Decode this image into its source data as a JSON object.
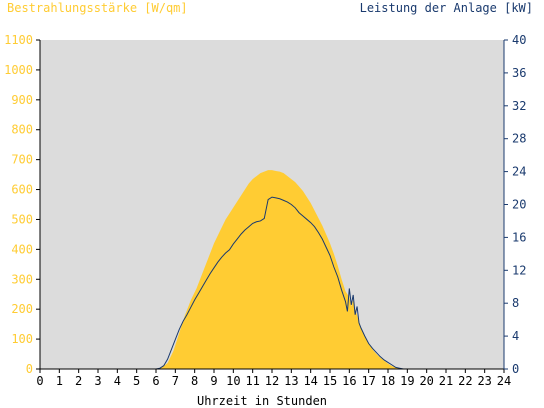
{
  "chart_data": {
    "type": "area",
    "left_axis_label": "Bestrahlungsstärke [W/qm]",
    "right_axis_label": "Leistung der Anlage [kW]",
    "xlabel": "Uhrzeit in Stunden",
    "x_ticks": [
      "0",
      "1",
      "2",
      "3",
      "4",
      "5",
      "6",
      "7",
      "8",
      "9",
      "10",
      "11",
      "12",
      "13",
      "14",
      "15",
      "16",
      "17",
      "18",
      "19",
      "20",
      "21",
      "22",
      "23",
      "24"
    ],
    "y_left_ticks": [
      "0",
      "100",
      "200",
      "300",
      "400",
      "500",
      "600",
      "700",
      "800",
      "900",
      "1000",
      "1100"
    ],
    "y_right_ticks": [
      "0",
      "4",
      "8",
      "12",
      "16",
      "20",
      "24",
      "28",
      "32",
      "36",
      "40"
    ],
    "y_left_lim": [
      0,
      1100
    ],
    "y_right_lim": [
      0,
      40
    ],
    "x_lim": [
      0,
      24
    ],
    "grid": false,
    "colors": {
      "plot_background": "#dcdcdc",
      "irradiance_fill": "#ffcc33",
      "power_line": "#1a3a6e",
      "left_axis_text": "#ffcc33",
      "right_axis_text": "#1a3a6e",
      "axis_text": "#000000"
    },
    "series": [
      {
        "axis": "left",
        "kind": "area",
        "x": [
          0,
          6.0,
          6.3,
          6.6,
          6.9,
          7.2,
          7.5,
          7.8,
          8.1,
          8.4,
          8.7,
          9.0,
          9.3,
          9.6,
          9.8,
          10.0,
          10.2,
          10.4,
          10.6,
          10.8,
          11.0,
          11.2,
          11.4,
          11.6,
          11.8,
          12.0,
          12.2,
          12.4,
          12.6,
          12.8,
          13.0,
          13.2,
          13.4,
          13.6,
          13.8,
          14.0,
          14.2,
          14.4,
          14.6,
          14.8,
          15.0,
          15.2,
          15.4,
          15.6,
          15.8,
          16.0,
          16.1,
          16.2,
          16.3,
          16.4,
          16.5,
          16.6,
          16.8,
          17.0,
          17.2,
          17.4,
          17.6,
          17.8,
          18.0,
          18.2,
          18.4,
          18.6,
          18.8,
          19.0,
          24
        ],
        "values": [
          0,
          0,
          5,
          20,
          60,
          120,
          180,
          230,
          270,
          320,
          370,
          420,
          460,
          500,
          520,
          540,
          560,
          580,
          600,
          620,
          635,
          645,
          655,
          660,
          665,
          665,
          662,
          660,
          655,
          645,
          635,
          625,
          610,
          595,
          575,
          555,
          530,
          505,
          480,
          450,
          420,
          385,
          345,
          300,
          260,
          240,
          210,
          230,
          200,
          180,
          160,
          140,
          110,
          85,
          65,
          50,
          38,
          28,
          18,
          10,
          5,
          2,
          0,
          0,
          0
        ]
      },
      {
        "axis": "right",
        "kind": "line",
        "x": [
          0,
          6.0,
          6.2,
          6.4,
          6.6,
          6.8,
          7.0,
          7.2,
          7.4,
          7.6,
          7.8,
          8.0,
          8.2,
          8.4,
          8.6,
          8.8,
          9.0,
          9.2,
          9.4,
          9.6,
          9.8,
          10.0,
          10.2,
          10.4,
          10.6,
          10.8,
          11.0,
          11.2,
          11.4,
          11.6,
          11.8,
          12.0,
          12.2,
          12.4,
          12.6,
          12.8,
          13.0,
          13.2,
          13.4,
          13.6,
          13.8,
          14.0,
          14.2,
          14.4,
          14.6,
          14.8,
          15.0,
          15.2,
          15.4,
          15.6,
          15.8,
          15.9,
          16.0,
          16.1,
          16.2,
          16.3,
          16.4,
          16.5,
          16.6,
          16.8,
          17.0,
          17.2,
          17.4,
          17.6,
          17.8,
          18.0,
          18.2,
          18.4,
          18.6,
          18.8,
          19.0,
          24
        ],
        "values": [
          0,
          0,
          0.1,
          0.4,
          1.2,
          2.4,
          3.6,
          4.8,
          5.8,
          6.6,
          7.5,
          8.4,
          9.2,
          10.0,
          10.8,
          11.6,
          12.3,
          13.0,
          13.6,
          14.1,
          14.5,
          15.2,
          15.8,
          16.4,
          16.9,
          17.3,
          17.7,
          17.9,
          18.0,
          18.3,
          20.6,
          20.9,
          20.8,
          20.7,
          20.5,
          20.3,
          20.0,
          19.6,
          19.0,
          18.6,
          18.2,
          17.8,
          17.3,
          16.6,
          15.8,
          14.8,
          13.8,
          12.4,
          11.2,
          9.6,
          8.2,
          7.0,
          9.8,
          7.8,
          9.0,
          6.6,
          7.6,
          5.6,
          5.0,
          4.0,
          3.1,
          2.5,
          2.0,
          1.5,
          1.1,
          0.8,
          0.5,
          0.2,
          0.1,
          0,
          0,
          0
        ]
      }
    ]
  }
}
